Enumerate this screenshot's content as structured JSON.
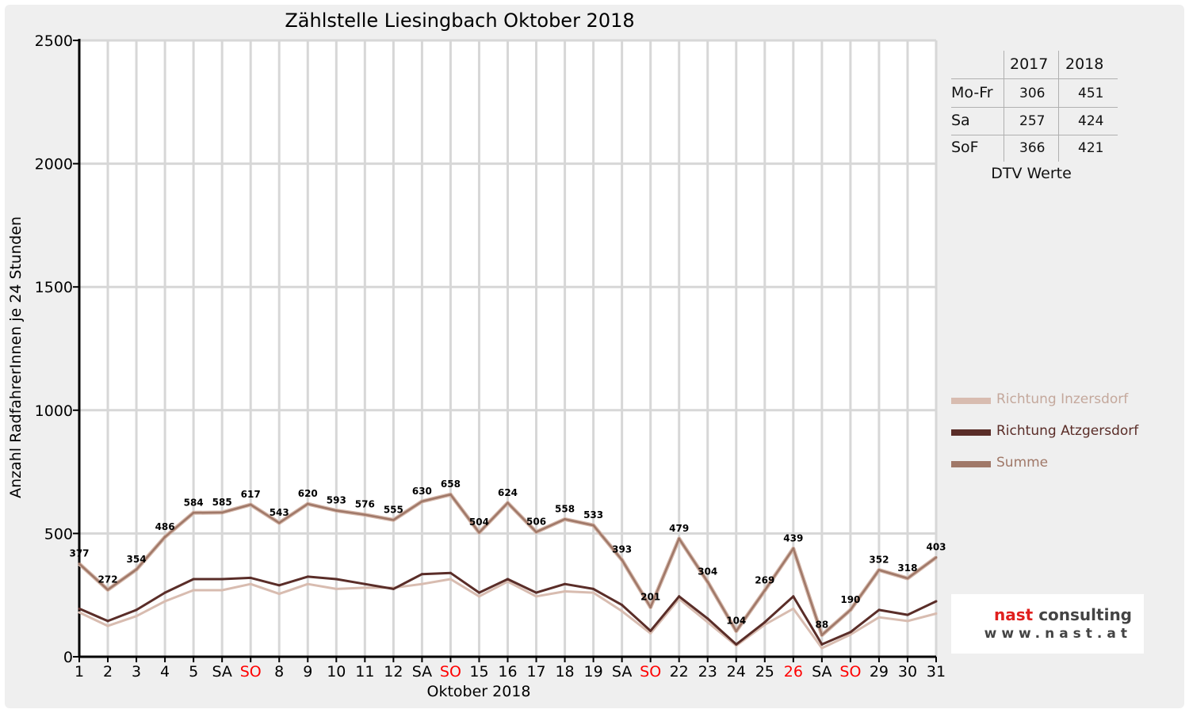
{
  "chart_data": {
    "type": "line",
    "title": "Zählstelle Liesingbach Oktober 2018",
    "xlabel": "Oktober 2018",
    "ylabel": "Anzahl RadfahrerInnen je 24 Stunden",
    "ylim": [
      0,
      2500
    ],
    "yticks": [
      0,
      500,
      1000,
      1500,
      2000,
      2500
    ],
    "grid": true,
    "legend_position": "right",
    "categories": [
      "1",
      "2",
      "3",
      "4",
      "5",
      "SA",
      "SO",
      "8",
      "9",
      "10",
      "11",
      "12",
      "SA",
      "SO",
      "15",
      "16",
      "17",
      "18",
      "19",
      "SA",
      "SO",
      "22",
      "23",
      "24",
      "25",
      "26",
      "SA",
      "SO",
      "29",
      "30",
      "31"
    ],
    "highlight_categories": [
      6,
      13,
      20,
      25,
      27
    ],
    "highlight_color": "#ff0000",
    "series": [
      {
        "name": "Richtung Inzersdorf",
        "color": "#d8bcb0",
        "values": [
          180,
          125,
          165,
          225,
          270,
          270,
          295,
          255,
          295,
          275,
          280,
          280,
          295,
          315,
          245,
          305,
          245,
          265,
          260,
          185,
          95,
          235,
          140,
          45,
          130,
          195,
          35,
          90,
          160,
          145,
          175
        ]
      },
      {
        "name": "Richtung Atzgersdorf",
        "color": "#5a2d28",
        "values": [
          195,
          145,
          190,
          260,
          315,
          315,
          320,
          290,
          325,
          315,
          295,
          275,
          335,
          340,
          260,
          315,
          260,
          295,
          275,
          210,
          105,
          245,
          155,
          50,
          140,
          245,
          50,
          100,
          190,
          170,
          225
        ]
      },
      {
        "name": "Summe",
        "color": "#a07868",
        "values": [
          377,
          272,
          354,
          486,
          584,
          585,
          617,
          543,
          620,
          593,
          576,
          555,
          630,
          658,
          504,
          624,
          506,
          558,
          533,
          393,
          201,
          479,
          304,
          104,
          269,
          439,
          88,
          190,
          352,
          318,
          403
        ],
        "labels": [
          377,
          272,
          354,
          486,
          584,
          585,
          617,
          543,
          620,
          593,
          576,
          555,
          630,
          658,
          504,
          624,
          506,
          558,
          533,
          393,
          201,
          479,
          304,
          104,
          269,
          439,
          88,
          190,
          352,
          318,
          403
        ]
      }
    ]
  },
  "dtv_table": {
    "headers": [
      "2017",
      "2018"
    ],
    "rows": [
      {
        "label": "Mo-Fr",
        "v2017": "306",
        "v2018": "451"
      },
      {
        "label": "Sa",
        "v2017": "257",
        "v2018": "424"
      },
      {
        "label": "SoF",
        "v2017": "366",
        "v2018": "421"
      }
    ],
    "caption": "DTV Werte"
  },
  "logo": {
    "brand_part1": "nast",
    "brand_part2": " consulting",
    "url": "www.nast.at",
    "red": "#e0201e",
    "dark": "#444444"
  }
}
